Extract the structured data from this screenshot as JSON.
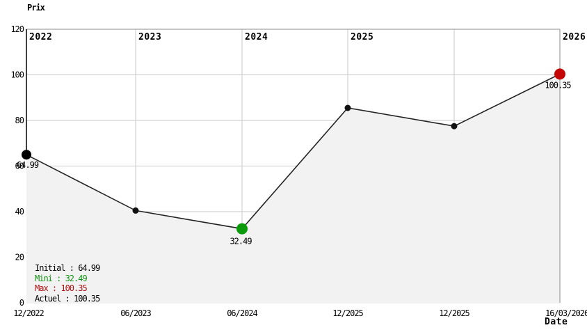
{
  "chart_data": {
    "type": "area",
    "title": "Prix",
    "xlabel": "Date",
    "ylim": [
      0,
      120
    ],
    "y_ticks": [
      0,
      20,
      40,
      60,
      80,
      100,
      120
    ],
    "x_tick_labels": [
      "12/2022",
      "06/2023",
      "06/2024",
      "12/2025",
      "12/2025",
      "16/03/2026"
    ],
    "year_labels": [
      "2022",
      "2023",
      "2024",
      "2025",
      "2026"
    ],
    "grid": true,
    "legend_position": "bottom-left",
    "points": [
      {
        "x": "12/2022",
        "y": 64.99,
        "label": "64.99",
        "role": "initial"
      },
      {
        "x": "06/2023",
        "y": 40.5,
        "label": "",
        "role": "point"
      },
      {
        "x": "06/2024",
        "y": 32.49,
        "label": "32.49",
        "role": "min"
      },
      {
        "x": "12/2025",
        "y": 85.5,
        "label": "",
        "role": "point"
      },
      {
        "x": "12/2025",
        "y": 77.5,
        "label": "",
        "role": "point"
      },
      {
        "x": "16/03/2026",
        "y": 100.35,
        "label": "100.35",
        "role": "max"
      }
    ],
    "legend": [
      {
        "text": "Initial : 64.99",
        "color": "#000000"
      },
      {
        "text": "Mini : 32.49",
        "color": "#129512"
      },
      {
        "text": "Max : 100.35",
        "color": "#b01010"
      },
      {
        "text": "Actuel : 100.35",
        "color": "#000000"
      }
    ],
    "colors": {
      "line": "#242424",
      "area_fill": "#f2f2f2",
      "grid": "#c9c9c9",
      "frame": "#a3a3a3",
      "axis": "#000000",
      "point": "#111111",
      "initial": "#000000",
      "min": "#0a9a0a",
      "max": "#c40606",
      "min_label": "#129512",
      "max_label": "#b01010",
      "initial_label": "#000000"
    }
  }
}
